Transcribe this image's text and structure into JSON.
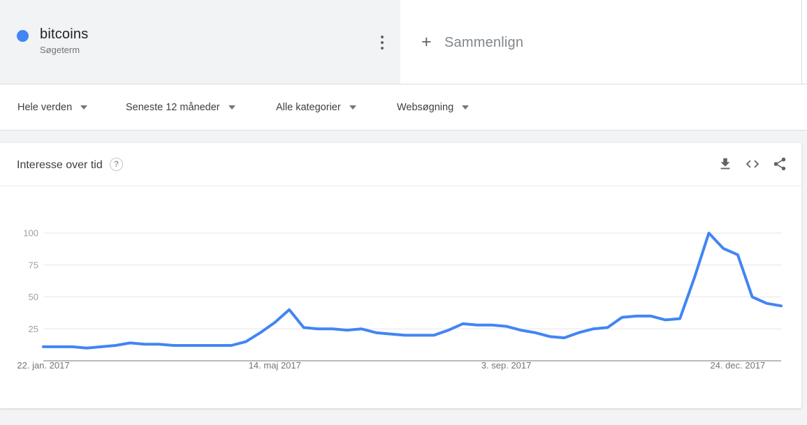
{
  "term_card": {
    "term": "bitcoins",
    "type_label": "Søgeterm",
    "dot_color": "#4285f4",
    "menu_icon": "kebab-menu-icon"
  },
  "compare_card": {
    "plus_symbol": "+",
    "label": "Sammenlign"
  },
  "filters": [
    {
      "id": "geo",
      "label": "Hele verden",
      "icon": "caret-down-icon"
    },
    {
      "id": "time",
      "label": "Seneste 12 måneder",
      "icon": "caret-down-icon"
    },
    {
      "id": "category",
      "label": "Alle kategorier",
      "icon": "caret-down-icon"
    },
    {
      "id": "search-type",
      "label": "Websøgning",
      "icon": "caret-down-icon"
    }
  ],
  "chart_card": {
    "title": "Interesse over tid",
    "help_glyph": "?",
    "action_icons": [
      "download-icon",
      "embed-code-icon",
      "share-icon"
    ]
  },
  "chart_data": {
    "type": "line",
    "title": "Interesse over tid",
    "grid": "horizontal",
    "legend": "none",
    "ylim": [
      0,
      100
    ],
    "y_ticks": [
      25,
      50,
      75,
      100
    ],
    "x_tick_labels": [
      "22. jan. 2017",
      "14. maj 2017",
      "3. sep. 2017",
      "24. dec. 2017"
    ],
    "x_tick_indices": [
      0,
      16,
      32,
      48
    ],
    "x": [
      "22. jan. 2017",
      "29. jan. 2017",
      "5. feb. 2017",
      "12. feb. 2017",
      "19. feb. 2017",
      "26. feb. 2017",
      "5. mar. 2017",
      "12. mar. 2017",
      "19. mar. 2017",
      "26. mar. 2017",
      "2. apr. 2017",
      "9. apr. 2017",
      "16. apr. 2017",
      "23. apr. 2017",
      "30. apr. 2017",
      "7. maj 2017",
      "14. maj 2017",
      "21. maj 2017",
      "28. maj 2017",
      "4. jun. 2017",
      "11. jun. 2017",
      "18. jun. 2017",
      "25. jun. 2017",
      "2. jul. 2017",
      "9. jul. 2017",
      "16. jul. 2017",
      "23. jul. 2017",
      "30. jul. 2017",
      "6. aug. 2017",
      "13. aug. 2017",
      "20. aug. 2017",
      "27. aug. 2017",
      "3. sep. 2017",
      "10. sep. 2017",
      "17. sep. 2017",
      "24. sep. 2017",
      "1. okt. 2017",
      "8. okt. 2017",
      "15. okt. 2017",
      "22. okt. 2017",
      "29. okt. 2017",
      "5. nov. 2017",
      "12. nov. 2017",
      "19. nov. 2017",
      "26. nov. 2017",
      "3. dec. 2017",
      "10. dec. 2017",
      "17. dec. 2017",
      "24. dec. 2017",
      "31. dec. 2017",
      "7. jan. 2018",
      "14. jan. 2018"
    ],
    "series": [
      {
        "name": "bitcoins",
        "color": "#4285f4",
        "values": [
          11,
          11,
          11,
          10,
          11,
          12,
          14,
          13,
          13,
          12,
          12,
          12,
          12,
          12,
          15,
          22,
          30,
          40,
          26,
          25,
          25,
          24,
          25,
          22,
          21,
          20,
          20,
          20,
          24,
          29,
          28,
          28,
          27,
          24,
          22,
          19,
          18,
          22,
          25,
          26,
          34,
          35,
          35,
          32,
          33,
          65,
          100,
          88,
          83,
          50,
          45,
          43
        ]
      }
    ]
  }
}
